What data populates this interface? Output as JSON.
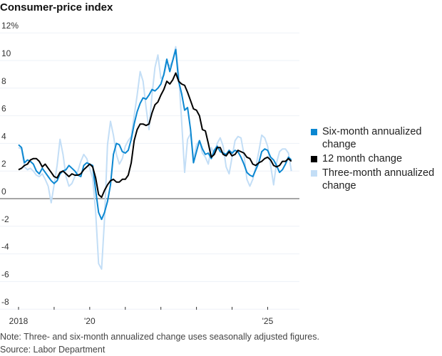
{
  "chart_data": {
    "type": "line",
    "title": "Consumer-price index",
    "xlabel": "",
    "ylabel": "",
    "ylim": [
      -8,
      12
    ],
    "y_ticks": [
      "12%",
      "10",
      "8",
      "6",
      "4",
      "2",
      "0",
      "-2",
      "-4",
      "-6",
      "-8"
    ],
    "y_tick_values": [
      12,
      10,
      8,
      6,
      4,
      2,
      0,
      -2,
      -4,
      -6,
      -8
    ],
    "x_start": "2018-01",
    "x_frequency": "monthly",
    "x_tick_labels": [
      {
        "year": 2018,
        "label": "2018"
      },
      {
        "year": 2019,
        "label": ""
      },
      {
        "year": 2020,
        "label": "'20"
      },
      {
        "year": 2021,
        "label": ""
      },
      {
        "year": 2022,
        "label": ""
      },
      {
        "year": 2023,
        "label": ""
      },
      {
        "year": 2024,
        "label": ""
      },
      {
        "year": 2025,
        "label": "'25"
      }
    ],
    "grid": true,
    "legend_placement": "right",
    "series": [
      {
        "name": "Three-month annualized change",
        "color": "#c3def6",
        "values": [
          3.7,
          3.6,
          2.3,
          2.1,
          2.2,
          2.0,
          1.7,
          1.6,
          1.8,
          1.4,
          0.9,
          -0.3,
          1.0,
          2.4,
          4.3,
          3.2,
          1.6,
          0.9,
          1.1,
          1.6,
          2.0,
          2.7,
          3.2,
          2.9,
          2.2,
          1.5,
          -1.0,
          -4.7,
          -5.1,
          -1.5,
          3.9,
          5.6,
          4.6,
          3.2,
          2.5,
          2.9,
          3.8,
          4.2,
          4.5,
          6.0,
          7.5,
          9.2,
          8.5,
          6.6,
          5.0,
          7.5,
          9.5,
          10.4,
          8.7,
          8.9,
          9.8,
          9.6,
          10.0,
          11.0,
          9.0,
          5.6,
          1.9,
          4.3,
          4.7,
          2.8,
          3.9,
          4.2,
          3.3,
          3.0,
          2.5,
          3.7,
          3.2,
          4.0,
          4.4,
          3.8,
          2.3,
          1.8,
          3.0,
          4.2,
          4.5,
          4.4,
          3.2,
          1.4,
          0.9,
          1.4,
          2.3,
          3.4,
          4.6,
          4.4,
          3.8,
          2.4,
          1.0,
          2.6,
          3.4,
          3.6,
          3.6,
          3.3,
          2.0
        ]
      },
      {
        "name": "Six-month annualized change",
        "color": "#0b87d1",
        "values": [
          3.9,
          3.7,
          2.6,
          2.8,
          2.7,
          2.5,
          2.0,
          1.8,
          2.2,
          1.9,
          1.6,
          1.3,
          1.1,
          1.3,
          1.8,
          2.0,
          2.1,
          2.4,
          2.2,
          2.0,
          1.7,
          1.6,
          2.4,
          2.6,
          2.5,
          2.4,
          0.6,
          -1.0,
          -1.5,
          -1.0,
          -0.2,
          1.0,
          3.2,
          4.0,
          3.9,
          3.4,
          3.3,
          3.5,
          4.3,
          5.4,
          6.3,
          6.9,
          7.3,
          7.2,
          7.5,
          7.9,
          7.8,
          8.0,
          8.3,
          9.0,
          10.1,
          9.2,
          10.0,
          10.8,
          8.5,
          7.6,
          6.4,
          6.6,
          5.0,
          2.6,
          3.4,
          4.2,
          3.6,
          3.2,
          3.3,
          2.9,
          3.5,
          3.8,
          3.4,
          3.3,
          3.2,
          3.5,
          3.3,
          3.5,
          3.4,
          3.0,
          2.5,
          1.9,
          1.7,
          1.6,
          2.1,
          2.6,
          3.4,
          3.6,
          3.5,
          3.0,
          2.8,
          2.4,
          1.9,
          2.1,
          2.5,
          3.0,
          2.8
        ]
      },
      {
        "name": "12 month change",
        "color": "#000000",
        "values": [
          2.1,
          2.2,
          2.4,
          2.5,
          2.8,
          2.9,
          2.9,
          2.7,
          2.3,
          2.5,
          2.2,
          1.9,
          1.6,
          1.5,
          1.9,
          2.0,
          1.8,
          1.6,
          1.8,
          1.7,
          1.7,
          1.8,
          2.1,
          2.3,
          2.5,
          2.3,
          1.5,
          0.3,
          0.1,
          0.6,
          1.0,
          1.3,
          1.4,
          1.2,
          1.2,
          1.4,
          1.4,
          1.7,
          2.6,
          4.2,
          5.0,
          5.4,
          5.4,
          5.3,
          5.4,
          6.2,
          6.8,
          7.0,
          7.5,
          7.9,
          8.5,
          8.3,
          8.6,
          9.1,
          8.5,
          8.3,
          8.2,
          7.7,
          7.1,
          6.5,
          6.4,
          6.0,
          5.0,
          4.9,
          4.0,
          3.0,
          3.2,
          3.7,
          3.7,
          3.2,
          3.1,
          3.4,
          3.1,
          3.2,
          3.5,
          3.4,
          3.3,
          3.0,
          2.9,
          2.5,
          2.4,
          2.6,
          2.7,
          2.9,
          3.0,
          2.8,
          2.4,
          2.3,
          2.4,
          2.7,
          2.7,
          2.9,
          2.7
        ]
      }
    ],
    "legend": [
      {
        "label": "Six-month annualized change",
        "color": "#0b87d1"
      },
      {
        "label": "12 month change",
        "color": "#000000"
      },
      {
        "label": "Three-month annualized change",
        "color": "#c3def6"
      }
    ],
    "note": "Note: Three- and six-month annualized change uses seasonally adjusted figures.",
    "source": "Source: Labor Department"
  }
}
